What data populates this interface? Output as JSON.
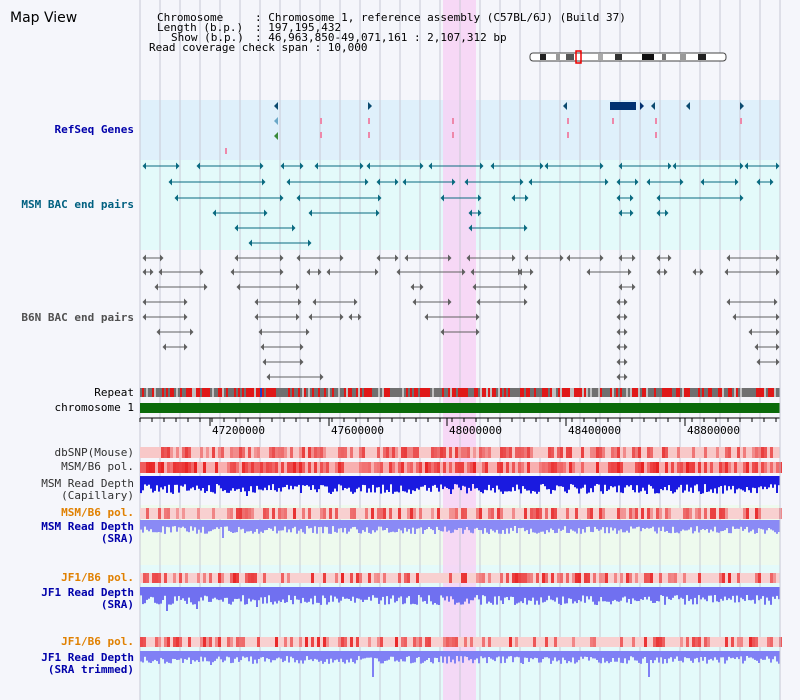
{
  "title": "Map View",
  "header": {
    "chromosome_key": "Chromosome",
    "chromosome_val": ": Chromosome 1, reference assembly (C57BL/6J) (Build 37)",
    "length_key": "Length (b.p.)",
    "length_val": ": 197,195,432",
    "show_key": "Show (b.p.)",
    "show_val": ": 46,963,850-49,071,161 : 2,107,312 bp",
    "coverage": "Read coverage check span : 10,000"
  },
  "tracks": {
    "refseq": "RefSeq Genes",
    "msm_bac": "MSM BAC end pairs",
    "b6n_bac": "B6N BAC end pairs",
    "repeat": "Repeat",
    "chromosome": "chromosome 1",
    "dbsnp": "dbSNP(Mouse)",
    "msm_b6_pol": "MSM/B6 pol.",
    "msm_depth_cap_1": "MSM Read Depth",
    "msm_depth_cap_2": "(Capillary)",
    "msm_b6_pol2": "MSM/B6 pol.",
    "msm_depth_sra_1": "MSM Read Depth",
    "msm_depth_sra_2": "(SRA)",
    "jf1_b6_pol": "JF1/B6 pol.",
    "jf1_depth_sra_1": "JF1 Read Depth",
    "jf1_depth_sra_2": "(SRA)",
    "jf1_b6_pol2": "JF1/B6 pol.",
    "jf1_depth_trim_1": "JF1 Read Depth",
    "jf1_depth_trim_2": "(SRA trimmed)"
  },
  "axis": {
    "ticks": [
      "47200000",
      "47600000",
      "48000000",
      "48400000",
      "48800000"
    ]
  },
  "colors": {
    "refseq_bg": "#dff0fb",
    "msm_bg": "#e3fafa",
    "highlight": "#f7d2f5",
    "chrom_green": "#0a6a0a",
    "depth_dark": "#1a1ae0",
    "depth_light": "#8a8af5",
    "pol_red": "#f03030",
    "label_blue": "#0000aa",
    "label_teal": "#006080",
    "label_orange": "#e08000",
    "label_gray": "#505050"
  }
}
